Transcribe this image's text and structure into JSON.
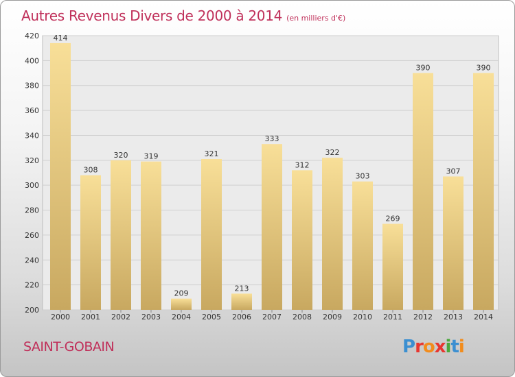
{
  "header": {
    "title": "Autres Revenus Divers de 2000 à 2014",
    "subtitle": "(en milliers d'€)"
  },
  "footer": {
    "commune": "SAINT-GOBAIN",
    "logo_text": "Proxiti"
  },
  "colors": {
    "title": "#c0305a",
    "bar_top": "#f8df98",
    "bar_bottom": "#c8a860",
    "logo_letters": [
      "#3b8fd1",
      "#e8362f",
      "#f28c1c",
      "#e8362f",
      "#4aa83c",
      "#3b8fd1",
      "#f28c1c"
    ]
  },
  "chart_data": {
    "type": "bar",
    "title": "Autres Revenus Divers de 2000 à 2014",
    "subtitle": "(en milliers d'€)",
    "categories": [
      "2000",
      "2001",
      "2002",
      "2003",
      "2004",
      "2005",
      "2006",
      "2007",
      "2008",
      "2009",
      "2010",
      "2011",
      "2012",
      "2013",
      "2014"
    ],
    "values": [
      414,
      308,
      320,
      319,
      209,
      321,
      213,
      333,
      312,
      322,
      303,
      269,
      390,
      307,
      390
    ],
    "ylim": [
      200,
      420
    ],
    "yticks": [
      200,
      220,
      240,
      260,
      280,
      300,
      320,
      340,
      360,
      380,
      400,
      420
    ],
    "grid": true,
    "data_labels": true
  }
}
